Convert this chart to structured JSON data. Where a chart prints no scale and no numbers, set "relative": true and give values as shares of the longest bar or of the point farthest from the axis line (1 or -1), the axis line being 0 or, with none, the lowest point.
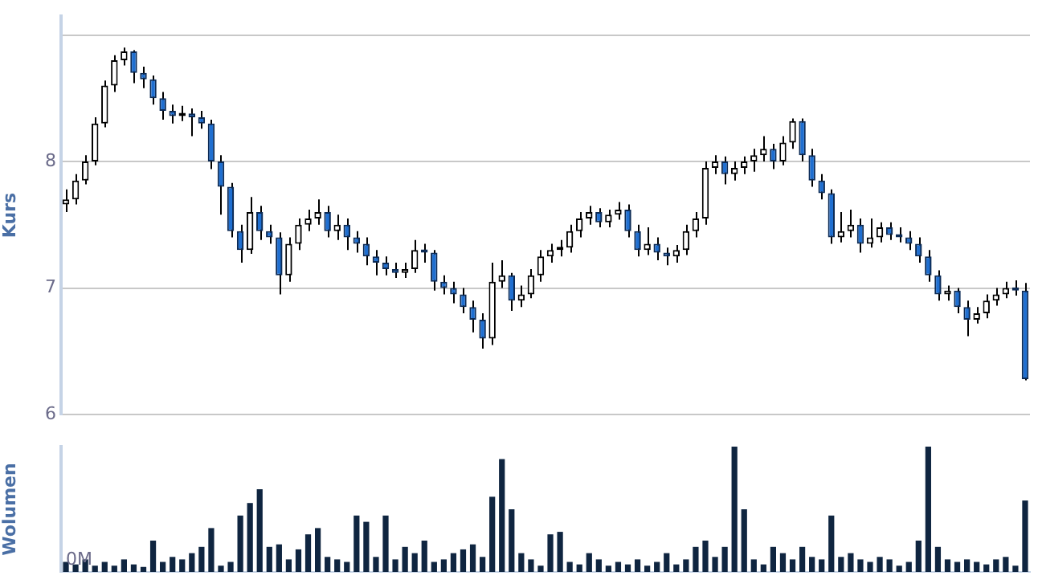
{
  "chart_data": [
    {
      "type": "candlestick",
      "ylabel": "Kurs",
      "ylim": [
        6,
        9.15
      ],
      "yticks": [
        6,
        7,
        8,
        {
          "value": 9,
          "label": null
        }
      ],
      "grid": "y",
      "categories": [
        null,
        null,
        null,
        null,
        null,
        null,
        null,
        null,
        null,
        null,
        null,
        null,
        null,
        null,
        null,
        null,
        null,
        null,
        null,
        null,
        null,
        null,
        null,
        null,
        null,
        null,
        null,
        null,
        null,
        null,
        null,
        null,
        null,
        null,
        null,
        null,
        null,
        null,
        null,
        null,
        null,
        null,
        null,
        null,
        null,
        null,
        null,
        null,
        null,
        null,
        null,
        null,
        null,
        null,
        null,
        null,
        null,
        null,
        null,
        null,
        null,
        null,
        null,
        null,
        null,
        null,
        null,
        null,
        null,
        null,
        null,
        null,
        null,
        null,
        null,
        null,
        null,
        null,
        null,
        null,
        null,
        null,
        null,
        null,
        null,
        null,
        null,
        null,
        null,
        null,
        null,
        null,
        null,
        null,
        null,
        null,
        null,
        null,
        null,
        null
      ],
      "ohlc": [
        [
          7.66,
          7.78,
          7.6,
          7.7
        ],
        [
          7.7,
          7.9,
          7.66,
          7.85
        ],
        [
          7.85,
          8.05,
          7.82,
          8.0
        ],
        [
          8.0,
          8.35,
          7.97,
          8.3
        ],
        [
          8.3,
          8.64,
          8.27,
          8.6
        ],
        [
          8.6,
          8.84,
          8.55,
          8.8
        ],
        [
          8.8,
          8.9,
          8.76,
          8.87
        ],
        [
          8.87,
          8.88,
          8.62,
          8.7
        ],
        [
          8.7,
          8.75,
          8.58,
          8.65
        ],
        [
          8.65,
          8.68,
          8.45,
          8.5
        ],
        [
          8.5,
          8.55,
          8.33,
          8.4
        ],
        [
          8.4,
          8.45,
          8.3,
          8.36
        ],
        [
          8.36,
          8.44,
          8.32,
          8.38
        ],
        [
          8.38,
          8.42,
          8.2,
          8.35
        ],
        [
          8.35,
          8.4,
          8.26,
          8.3
        ],
        [
          8.3,
          8.33,
          7.94,
          8.0
        ],
        [
          8.0,
          8.05,
          7.58,
          7.8
        ],
        [
          7.8,
          7.83,
          7.4,
          7.45
        ],
        [
          7.45,
          7.5,
          7.2,
          7.3
        ],
        [
          7.3,
          7.72,
          7.27,
          7.6
        ],
        [
          7.6,
          7.65,
          7.38,
          7.45
        ],
        [
          7.45,
          7.5,
          7.35,
          7.4
        ],
        [
          7.4,
          7.44,
          6.95,
          7.1
        ],
        [
          7.1,
          7.4,
          7.05,
          7.35
        ],
        [
          7.35,
          7.55,
          7.3,
          7.5
        ],
        [
          7.5,
          7.62,
          7.45,
          7.55
        ],
        [
          7.55,
          7.7,
          7.5,
          7.6
        ],
        [
          7.6,
          7.65,
          7.4,
          7.45
        ],
        [
          7.45,
          7.58,
          7.38,
          7.5
        ],
        [
          7.5,
          7.55,
          7.3,
          7.4
        ],
        [
          7.4,
          7.45,
          7.28,
          7.35
        ],
        [
          7.35,
          7.4,
          7.18,
          7.25
        ],
        [
          7.25,
          7.3,
          7.1,
          7.2
        ],
        [
          7.2,
          7.25,
          7.1,
          7.15
        ],
        [
          7.15,
          7.2,
          7.08,
          7.12
        ],
        [
          7.12,
          7.2,
          7.08,
          7.15
        ],
        [
          7.15,
          7.38,
          7.12,
          7.3
        ],
        [
          7.3,
          7.35,
          7.2,
          7.28
        ],
        [
          7.28,
          7.3,
          6.98,
          7.05
        ],
        [
          7.05,
          7.1,
          6.95,
          7.0
        ],
        [
          7.0,
          7.05,
          6.88,
          6.95
        ],
        [
          6.95,
          7.0,
          6.8,
          6.85
        ],
        [
          6.85,
          6.9,
          6.65,
          6.75
        ],
        [
          6.75,
          6.8,
          6.52,
          6.6
        ],
        [
          6.6,
          7.2,
          6.55,
          7.05
        ],
        [
          7.05,
          7.22,
          7.0,
          7.1
        ],
        [
          7.1,
          7.12,
          6.82,
          6.9
        ],
        [
          6.9,
          7.02,
          6.85,
          6.95
        ],
        [
          6.95,
          7.15,
          6.92,
          7.1
        ],
        [
          7.1,
          7.3,
          7.05,
          7.25
        ],
        [
          7.25,
          7.35,
          7.2,
          7.3
        ],
        [
          7.3,
          7.38,
          7.25,
          7.32
        ],
        [
          7.32,
          7.5,
          7.28,
          7.45
        ],
        [
          7.45,
          7.6,
          7.4,
          7.55
        ],
        [
          7.55,
          7.65,
          7.5,
          7.6
        ],
        [
          7.6,
          7.63,
          7.48,
          7.52
        ],
        [
          7.52,
          7.62,
          7.48,
          7.58
        ],
        [
          7.58,
          7.68,
          7.54,
          7.62
        ],
        [
          7.62,
          7.66,
          7.4,
          7.45
        ],
        [
          7.45,
          7.5,
          7.25,
          7.3
        ],
        [
          7.3,
          7.48,
          7.26,
          7.35
        ],
        [
          7.35,
          7.4,
          7.22,
          7.28
        ],
        [
          7.28,
          7.32,
          7.18,
          7.25
        ],
        [
          7.25,
          7.34,
          7.2,
          7.3
        ],
        [
          7.3,
          7.5,
          7.26,
          7.45
        ],
        [
          7.45,
          7.6,
          7.4,
          7.55
        ],
        [
          7.55,
          8.0,
          7.5,
          7.95
        ],
        [
          7.95,
          8.05,
          7.9,
          8.0
        ],
        [
          8.0,
          8.04,
          7.82,
          7.9
        ],
        [
          7.9,
          8.0,
          7.85,
          7.95
        ],
        [
          7.95,
          8.04,
          7.9,
          8.0
        ],
        [
          8.0,
          8.1,
          7.92,
          8.05
        ],
        [
          8.05,
          8.2,
          8.0,
          8.1
        ],
        [
          8.1,
          8.14,
          7.94,
          8.0
        ],
        [
          8.0,
          8.2,
          7.97,
          8.15
        ],
        [
          8.15,
          8.34,
          8.1,
          8.32
        ],
        [
          8.32,
          8.34,
          8.0,
          8.05
        ],
        [
          8.05,
          8.1,
          7.8,
          7.85
        ],
        [
          7.85,
          7.9,
          7.7,
          7.75
        ],
        [
          7.75,
          7.78,
          7.35,
          7.4
        ],
        [
          7.4,
          7.6,
          7.36,
          7.45
        ],
        [
          7.45,
          7.62,
          7.4,
          7.5
        ],
        [
          7.5,
          7.55,
          7.28,
          7.35
        ],
        [
          7.35,
          7.55,
          7.32,
          7.4
        ],
        [
          7.4,
          7.52,
          7.36,
          7.48
        ],
        [
          7.48,
          7.52,
          7.38,
          7.42
        ],
        [
          7.42,
          7.48,
          7.36,
          7.4
        ],
        [
          7.4,
          7.45,
          7.3,
          7.35
        ],
        [
          7.35,
          7.4,
          7.2,
          7.25
        ],
        [
          7.25,
          7.3,
          7.05,
          7.1
        ],
        [
          7.1,
          7.14,
          6.9,
          6.95
        ],
        [
          6.95,
          7.02,
          6.9,
          6.98
        ],
        [
          6.98,
          7.0,
          6.8,
          6.85
        ],
        [
          6.85,
          6.9,
          6.62,
          6.75
        ],
        [
          6.75,
          6.85,
          6.72,
          6.8
        ],
        [
          6.8,
          6.95,
          6.76,
          6.9
        ],
        [
          6.9,
          7.0,
          6.86,
          6.95
        ],
        [
          6.95,
          7.05,
          6.92,
          7.0
        ],
        [
          7.0,
          7.06,
          6.94,
          6.98
        ],
        [
          6.98,
          7.04,
          6.27,
          6.28
        ]
      ]
    },
    {
      "type": "bar",
      "ylabel": "Wolumen",
      "relative": true,
      "color": "#0f2540",
      "annotations": [
        "0M"
      ],
      "categories": [
        null,
        null,
        null,
        null,
        null,
        null,
        null,
        null,
        null,
        null,
        null,
        null,
        null,
        null,
        null,
        null,
        null,
        null,
        null,
        null,
        null,
        null,
        null,
        null,
        null,
        null,
        null,
        null,
        null,
        null,
        null,
        null,
        null,
        null,
        null,
        null,
        null,
        null,
        null,
        null,
        null,
        null,
        null,
        null,
        null,
        null,
        null,
        null,
        null,
        null,
        null,
        null,
        null,
        null,
        null,
        null,
        null,
        null,
        null,
        null,
        null,
        null,
        null,
        null,
        null,
        null,
        null,
        null,
        null,
        null,
        null,
        null,
        null,
        null,
        null,
        null,
        null,
        null,
        null,
        null,
        null,
        null,
        null,
        null,
        null,
        null,
        null,
        null,
        null,
        null,
        null,
        null,
        null,
        null,
        null,
        null,
        null,
        null,
        null,
        null
      ],
      "values": [
        0.08,
        0.06,
        0.1,
        0.05,
        0.08,
        0.05,
        0.1,
        0.06,
        0.04,
        0.25,
        0.08,
        0.12,
        0.1,
        0.15,
        0.2,
        0.35,
        0.05,
        0.08,
        0.45,
        0.55,
        0.66,
        0.2,
        0.22,
        0.1,
        0.18,
        0.3,
        0.35,
        0.12,
        0.1,
        0.08,
        0.45,
        0.4,
        0.12,
        0.45,
        0.1,
        0.2,
        0.15,
        0.25,
        0.08,
        0.1,
        0.15,
        0.18,
        0.22,
        0.12,
        0.6,
        0.9,
        0.5,
        0.15,
        0.1,
        0.05,
        0.3,
        0.32,
        0.08,
        0.06,
        0.15,
        0.1,
        0.05,
        0.08,
        0.06,
        0.1,
        0.05,
        0.08,
        0.15,
        0.06,
        0.1,
        0.2,
        0.25,
        0.12,
        0.2,
        1.0,
        0.5,
        0.1,
        0.06,
        0.2,
        0.15,
        0.1,
        0.2,
        0.12,
        0.1,
        0.45,
        0.12,
        0.15,
        0.1,
        0.08,
        0.12,
        0.1,
        0.05,
        0.08,
        0.25,
        1.0,
        0.2,
        0.1,
        0.08,
        0.1,
        0.08,
        0.06,
        0.1,
        0.12,
        0.05,
        0.57
      ]
    }
  ]
}
